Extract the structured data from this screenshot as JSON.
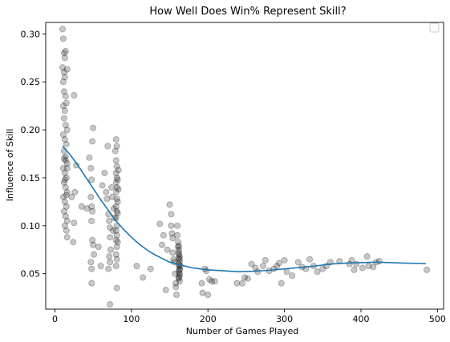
{
  "chart_data": {
    "type": "scatter",
    "title": "How Well Does Win% Represent Skill?",
    "xlabel": "Number of Games Played",
    "ylabel": "Influence of Skill",
    "xlim": [
      -12,
      508
    ],
    "ylim": [
      0.013,
      0.312
    ],
    "xticks": [
      0,
      100,
      200,
      300,
      400,
      500
    ],
    "yticks": [
      0.05,
      0.1,
      0.15,
      0.2,
      0.25,
      0.3
    ],
    "ytick_labels": [
      "0.05",
      "0.10",
      "0.15",
      "0.20",
      "0.25",
      "0.30"
    ],
    "grid": false,
    "legend": "top-right",
    "colors": {
      "points": "#000000",
      "trend": "#1f77b4"
    },
    "points": [
      [
        10,
        0.305
      ],
      [
        11,
        0.295
      ],
      [
        12,
        0.28
      ],
      [
        13,
        0.275
      ],
      [
        14,
        0.282
      ],
      [
        10,
        0.265
      ],
      [
        12,
        0.26
      ],
      [
        16,
        0.263
      ],
      [
        11,
        0.25
      ],
      [
        13,
        0.255
      ],
      [
        12,
        0.24
      ],
      [
        14,
        0.235
      ],
      [
        11,
        0.225
      ],
      [
        15,
        0.228
      ],
      [
        13,
        0.22
      ],
      [
        12,
        0.212
      ],
      [
        14,
        0.205
      ],
      [
        16,
        0.2
      ],
      [
        11,
        0.195
      ],
      [
        13,
        0.19
      ],
      [
        15,
        0.185
      ],
      [
        12,
        0.178
      ],
      [
        14,
        0.172
      ],
      [
        16,
        0.165
      ],
      [
        11,
        0.16
      ],
      [
        13,
        0.155
      ],
      [
        15,
        0.15
      ],
      [
        12,
        0.145
      ],
      [
        14,
        0.14
      ],
      [
        16,
        0.135
      ],
      [
        11,
        0.13
      ],
      [
        13,
        0.125
      ],
      [
        15,
        0.12
      ],
      [
        12,
        0.115
      ],
      [
        14,
        0.11
      ],
      [
        16,
        0.105
      ],
      [
        13,
        0.1
      ],
      [
        15,
        0.095
      ],
      [
        16,
        0.088
      ],
      [
        12,
        0.17
      ],
      [
        14,
        0.168
      ],
      [
        16,
        0.16
      ],
      [
        13,
        0.148
      ],
      [
        15,
        0.132
      ],
      [
        25,
        0.236
      ],
      [
        26,
        0.135
      ],
      [
        28,
        0.163
      ],
      [
        25,
        0.103
      ],
      [
        24,
        0.083
      ],
      [
        22,
        0.13
      ],
      [
        35,
        0.12
      ],
      [
        42,
        0.118
      ],
      [
        45,
        0.171
      ],
      [
        47,
        0.16
      ],
      [
        48,
        0.148
      ],
      [
        50,
        0.202
      ],
      [
        49,
        0.188
      ],
      [
        47,
        0.13
      ],
      [
        48,
        0.12
      ],
      [
        49,
        0.115
      ],
      [
        48,
        0.105
      ],
      [
        49,
        0.085
      ],
      [
        50,
        0.08
      ],
      [
        47,
        0.062
      ],
      [
        48,
        0.04
      ],
      [
        51,
        0.07
      ],
      [
        48,
        0.055
      ],
      [
        57,
        0.078
      ],
      [
        60,
        0.058
      ],
      [
        62,
        0.142
      ],
      [
        65,
        0.155
      ],
      [
        67,
        0.135
      ],
      [
        68,
        0.128
      ],
      [
        69,
        0.183
      ],
      [
        70,
        0.112
      ],
      [
        71,
        0.105
      ],
      [
        72,
        0.098
      ],
      [
        72,
        0.088
      ],
      [
        73,
        0.075
      ],
      [
        71,
        0.068
      ],
      [
        72,
        0.062
      ],
      [
        70,
        0.055
      ],
      [
        72,
        0.018
      ],
      [
        74,
        0.14
      ],
      [
        75,
        0.13
      ],
      [
        76,
        0.095
      ],
      [
        77,
        0.118
      ],
      [
        78,
        0.108
      ],
      [
        79,
        0.178
      ],
      [
        80,
        0.19
      ],
      [
        81,
        0.183
      ],
      [
        80,
        0.168
      ],
      [
        81,
        0.162
      ],
      [
        80,
        0.155
      ],
      [
        81,
        0.15
      ],
      [
        80,
        0.145
      ],
      [
        81,
        0.14
      ],
      [
        80,
        0.135
      ],
      [
        81,
        0.128
      ],
      [
        80,
        0.12
      ],
      [
        81,
        0.115
      ],
      [
        80,
        0.108
      ],
      [
        81,
        0.1
      ],
      [
        80,
        0.095
      ],
      [
        81,
        0.09
      ],
      [
        80,
        0.085
      ],
      [
        81,
        0.078
      ],
      [
        80,
        0.07
      ],
      [
        81,
        0.065
      ],
      [
        80,
        0.058
      ],
      [
        81,
        0.035
      ],
      [
        82,
        0.148
      ],
      [
        82,
        0.125
      ],
      [
        82,
        0.113
      ],
      [
        82,
        0.083
      ],
      [
        83,
        0.158
      ],
      [
        83,
        0.138
      ],
      [
        107,
        0.058
      ],
      [
        115,
        0.046
      ],
      [
        125,
        0.055
      ],
      [
        137,
        0.102
      ],
      [
        140,
        0.08
      ],
      [
        142,
        0.09
      ],
      [
        145,
        0.033
      ],
      [
        147,
        0.075
      ],
      [
        150,
        0.122
      ],
      [
        152,
        0.112
      ],
      [
        152,
        0.1
      ],
      [
        153,
        0.092
      ],
      [
        154,
        0.087
      ],
      [
        154,
        0.072
      ],
      [
        155,
        0.065
      ],
      [
        156,
        0.062
      ],
      [
        157,
        0.05
      ],
      [
        158,
        0.04
      ],
      [
        158,
        0.036
      ],
      [
        159,
        0.028
      ],
      [
        160,
        0.1
      ],
      [
        160,
        0.09
      ],
      [
        161,
        0.083
      ],
      [
        161,
        0.078
      ],
      [
        162,
        0.075
      ],
      [
        162,
        0.07
      ],
      [
        162,
        0.066
      ],
      [
        163,
        0.062
      ],
      [
        162,
        0.058
      ],
      [
        163,
        0.055
      ],
      [
        162,
        0.052
      ],
      [
        163,
        0.048
      ],
      [
        162,
        0.045
      ],
      [
        163,
        0.042
      ],
      [
        162,
        0.06
      ],
      [
        163,
        0.068
      ],
      [
        162,
        0.072
      ],
      [
        163,
        0.054
      ],
      [
        162,
        0.046
      ],
      [
        163,
        0.065
      ],
      [
        162,
        0.079
      ],
      [
        163,
        0.05
      ],
      [
        164,
        0.058
      ],
      [
        192,
        0.04
      ],
      [
        193,
        0.03
      ],
      [
        196,
        0.055
      ],
      [
        198,
        0.053
      ],
      [
        200,
        0.028
      ],
      [
        202,
        0.044
      ],
      [
        205,
        0.042
      ],
      [
        209,
        0.042
      ],
      [
        238,
        0.04
      ],
      [
        245,
        0.04
      ],
      [
        248,
        0.046
      ],
      [
        252,
        0.045
      ],
      [
        257,
        0.06
      ],
      [
        262,
        0.056
      ],
      [
        265,
        0.052
      ],
      [
        272,
        0.058
      ],
      [
        275,
        0.064
      ],
      [
        280,
        0.053
      ],
      [
        286,
        0.055
      ],
      [
        290,
        0.058
      ],
      [
        293,
        0.061
      ],
      [
        296,
        0.04
      ],
      [
        300,
        0.064
      ],
      [
        303,
        0.052
      ],
      [
        310,
        0.048
      ],
      [
        318,
        0.062
      ],
      [
        323,
        0.057
      ],
      [
        328,
        0.055
      ],
      [
        333,
        0.065
      ],
      [
        338,
        0.058
      ],
      [
        343,
        0.052
      ],
      [
        350,
        0.055
      ],
      [
        355,
        0.058
      ],
      [
        360,
        0.062
      ],
      [
        372,
        0.063
      ],
      [
        385,
        0.06
      ],
      [
        388,
        0.064
      ],
      [
        391,
        0.054
      ],
      [
        394,
        0.06
      ],
      [
        402,
        0.056
      ],
      [
        408,
        0.068
      ],
      [
        410,
        0.058
      ],
      [
        416,
        0.057
      ],
      [
        420,
        0.062
      ],
      [
        424,
        0.063
      ],
      [
        486,
        0.054
      ]
    ],
    "trend": [
      [
        10,
        0.183
      ],
      [
        20,
        0.174
      ],
      [
        30,
        0.163
      ],
      [
        40,
        0.151
      ],
      [
        50,
        0.139
      ],
      [
        60,
        0.127
      ],
      [
        70,
        0.116
      ],
      [
        80,
        0.105
      ],
      [
        90,
        0.096
      ],
      [
        100,
        0.088
      ],
      [
        110,
        0.081
      ],
      [
        120,
        0.075
      ],
      [
        130,
        0.07
      ],
      [
        140,
        0.066
      ],
      [
        150,
        0.062
      ],
      [
        160,
        0.06
      ],
      [
        170,
        0.058
      ],
      [
        180,
        0.056
      ],
      [
        200,
        0.054
      ],
      [
        220,
        0.053
      ],
      [
        240,
        0.052
      ],
      [
        260,
        0.0525
      ],
      [
        280,
        0.0535
      ],
      [
        300,
        0.055
      ],
      [
        320,
        0.0565
      ],
      [
        340,
        0.058
      ],
      [
        360,
        0.06
      ],
      [
        380,
        0.061
      ],
      [
        400,
        0.0615
      ],
      [
        420,
        0.062
      ],
      [
        440,
        0.0615
      ],
      [
        460,
        0.061
      ],
      [
        485,
        0.0605
      ]
    ]
  }
}
